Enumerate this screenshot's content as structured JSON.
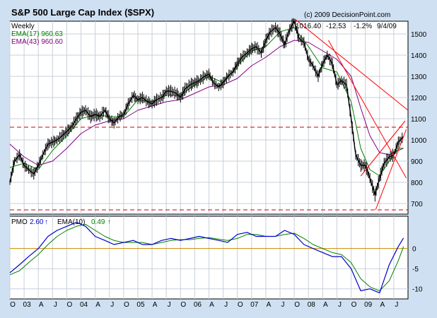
{
  "chart_data": {
    "type": "line",
    "title": "S&P 500 Large Cap Index ($SPX)",
    "copyright": "(c) 2009 DecisionPoint.com",
    "period": "Weekly",
    "quote": {
      "last": "1016.40",
      "change": "-12.53",
      "pct": "-1.2%",
      "date": "9/4/09"
    },
    "legend": [
      {
        "label": "EMA(17) 960.63",
        "color": "#008000"
      },
      {
        "label": "EMA(43) 960.60",
        "color": "#800080"
      }
    ],
    "price_axis": {
      "ticks": [
        "700",
        "800",
        "900",
        "1000",
        "1100",
        "1200",
        "1300",
        "1400",
        "1500"
      ],
      "ylim": [
        650,
        1560
      ]
    },
    "pmo_axis": {
      "ticks": [
        "0",
        "-5",
        "-10"
      ],
      "ylim": [
        -12.5,
        8
      ]
    },
    "x_ticks": [
      "O",
      "03",
      "A",
      "J",
      "O",
      "04",
      "A",
      "J",
      "O",
      "05",
      "A",
      "J",
      "O",
      "06",
      "A",
      "J",
      "O",
      "07",
      "A",
      "J",
      "O",
      "08",
      "A",
      "J",
      "O",
      "09",
      "A",
      "J"
    ],
    "x_range": [
      2002.75,
      2009.75
    ],
    "grid": true,
    "reference_lines": [
      {
        "value": 1060,
        "style": "dashed",
        "color": "#cc0000"
      },
      {
        "value": 670,
        "style": "dashed",
        "color": "#cc0000"
      }
    ],
    "trend_lines": [
      {
        "x": [
          2007.76,
          2009.75
        ],
        "y": [
          1570,
          1140
        ]
      },
      {
        "x": [
          2008.35,
          2009.72
        ],
        "y": [
          1470,
          820
        ]
      },
      {
        "x": [
          2009.18,
          2009.72
        ],
        "y": [
          670,
          1050
        ]
      },
      {
        "x": [
          2008.92,
          2009.7
        ],
        "y": [
          830,
          1090
        ]
      }
    ],
    "price_series": {
      "name": "$SPX",
      "x": [
        2002.75,
        2002.83,
        2002.92,
        2003.0,
        2003.08,
        2003.17,
        2003.25,
        2003.33,
        2003.42,
        2003.5,
        2003.58,
        2003.67,
        2003.75,
        2003.83,
        2003.92,
        2004.0,
        2004.08,
        2004.17,
        2004.25,
        2004.33,
        2004.42,
        2004.5,
        2004.58,
        2004.67,
        2004.75,
        2004.83,
        2004.92,
        2005.0,
        2005.08,
        2005.17,
        2005.25,
        2005.33,
        2005.42,
        2005.5,
        2005.58,
        2005.67,
        2005.75,
        2005.83,
        2005.92,
        2006.0,
        2006.08,
        2006.17,
        2006.25,
        2006.33,
        2006.42,
        2006.5,
        2006.58,
        2006.67,
        2006.75,
        2006.83,
        2006.92,
        2007.0,
        2007.08,
        2007.17,
        2007.25,
        2007.33,
        2007.42,
        2007.5,
        2007.58,
        2007.67,
        2007.75,
        2007.83,
        2007.92,
        2008.0,
        2008.08,
        2008.17,
        2008.25,
        2008.33,
        2008.42,
        2008.5,
        2008.58,
        2008.67,
        2008.75,
        2008.83,
        2008.92,
        2009.0,
        2009.08,
        2009.17,
        2009.25,
        2009.33,
        2009.42,
        2009.5,
        2009.58,
        2009.67
      ],
      "y": [
        800,
        900,
        930,
        880,
        860,
        840,
        880,
        930,
        980,
        990,
        1000,
        1020,
        1040,
        1060,
        1100,
        1130,
        1140,
        1110,
        1120,
        1110,
        1140,
        1100,
        1080,
        1110,
        1120,
        1170,
        1210,
        1190,
        1200,
        1180,
        1170,
        1190,
        1200,
        1230,
        1230,
        1220,
        1200,
        1240,
        1260,
        1270,
        1280,
        1300,
        1310,
        1270,
        1250,
        1270,
        1300,
        1320,
        1360,
        1390,
        1410,
        1430,
        1440,
        1410,
        1470,
        1510,
        1530,
        1500,
        1450,
        1520,
        1560,
        1480,
        1460,
        1380,
        1350,
        1300,
        1360,
        1400,
        1360,
        1260,
        1280,
        1260,
        1100,
        930,
        880,
        880,
        820,
        740,
        820,
        890,
        920,
        930,
        990,
        1016
      ]
    },
    "ema17_series": {
      "name": "EMA(17)",
      "x": [
        2002.75,
        2003.0,
        2003.25,
        2003.5,
        2003.75,
        2004.0,
        2004.25,
        2004.5,
        2004.75,
        2005.0,
        2005.25,
        2005.5,
        2005.75,
        2006.0,
        2006.25,
        2006.5,
        2006.75,
        2007.0,
        2007.25,
        2007.5,
        2007.75,
        2008.0,
        2008.25,
        2008.5,
        2008.75,
        2008.92,
        2009.08,
        2009.25,
        2009.42,
        2009.58,
        2009.67
      ],
      "y": [
        870,
        890,
        860,
        950,
        1020,
        1100,
        1120,
        1110,
        1110,
        1190,
        1180,
        1210,
        1210,
        1260,
        1300,
        1270,
        1350,
        1420,
        1440,
        1510,
        1530,
        1440,
        1340,
        1320,
        1180,
        960,
        860,
        830,
        900,
        960,
        961
      ]
    },
    "ema43_series": {
      "name": "EMA(43)",
      "x": [
        2002.75,
        2003.0,
        2003.25,
        2003.5,
        2003.75,
        2004.0,
        2004.25,
        2004.5,
        2004.75,
        2005.0,
        2005.25,
        2005.5,
        2005.75,
        2006.0,
        2006.25,
        2006.5,
        2006.75,
        2007.0,
        2007.25,
        2007.5,
        2007.75,
        2008.0,
        2008.25,
        2008.5,
        2008.75,
        2008.92,
        2009.08,
        2009.25,
        2009.42,
        2009.58,
        2009.67
      ],
      "y": [
        980,
        920,
        880,
        900,
        960,
        1030,
        1070,
        1090,
        1100,
        1140,
        1160,
        1180,
        1190,
        1220,
        1250,
        1260,
        1290,
        1350,
        1390,
        1440,
        1470,
        1460,
        1420,
        1380,
        1300,
        1150,
        1020,
        940,
        930,
        950,
        961
      ]
    },
    "pmo": {
      "label": "PMO",
      "value": "2.60",
      "ema_label": "EMA(10)",
      "ema_value": "0.49",
      "zero_line_color": "#cc8800",
      "series": {
        "name": "PMO",
        "x": [
          2002.75,
          2002.92,
          2003.08,
          2003.25,
          2003.42,
          2003.58,
          2003.75,
          2003.92,
          2004.08,
          2004.25,
          2004.42,
          2004.58,
          2004.75,
          2004.92,
          2005.08,
          2005.25,
          2005.42,
          2005.58,
          2005.75,
          2005.92,
          2006.08,
          2006.25,
          2006.42,
          2006.58,
          2006.75,
          2006.92,
          2007.08,
          2007.25,
          2007.42,
          2007.58,
          2007.75,
          2007.92,
          2008.08,
          2008.25,
          2008.42,
          2008.58,
          2008.75,
          2008.92,
          2009.08,
          2009.25,
          2009.42,
          2009.58,
          2009.67
        ],
        "y": [
          -6,
          -4,
          -2,
          0,
          3,
          4.5,
          5.5,
          6.5,
          5.5,
          3,
          2,
          1,
          1.5,
          2,
          1,
          1,
          2,
          2.5,
          2,
          2.5,
          3,
          2.5,
          2,
          1.5,
          3.5,
          4,
          3,
          3,
          3,
          4.5,
          3.5,
          1,
          0,
          -1,
          -2,
          -2,
          -5,
          -10.5,
          -10,
          -11,
          -4,
          0.5,
          2.6
        ]
      },
      "ema_series": {
        "name": "EMA(10)",
        "x": [
          2002.75,
          2002.92,
          2003.08,
          2003.25,
          2003.42,
          2003.58,
          2003.75,
          2003.92,
          2004.08,
          2004.25,
          2004.42,
          2004.58,
          2004.75,
          2004.92,
          2005.08,
          2005.25,
          2005.42,
          2005.58,
          2005.75,
          2005.92,
          2006.08,
          2006.25,
          2006.42,
          2006.58,
          2006.75,
          2006.92,
          2007.08,
          2007.25,
          2007.42,
          2007.58,
          2007.75,
          2007.92,
          2008.08,
          2008.25,
          2008.42,
          2008.58,
          2008.75,
          2008.92,
          2009.08,
          2009.25,
          2009.42,
          2009.58,
          2009.67
        ],
        "y": [
          -6.5,
          -5.5,
          -3.5,
          -1.5,
          1,
          3,
          4.5,
          5.5,
          6,
          4.5,
          3,
          2,
          1.5,
          1.5,
          1.5,
          1,
          1.5,
          2,
          2.2,
          2.2,
          2.5,
          2.7,
          2.3,
          2,
          2.5,
          3.5,
          3.5,
          3,
          3,
          3.5,
          3.8,
          2.5,
          1,
          0,
          -1,
          -1.5,
          -3.5,
          -7.5,
          -9.5,
          -10.5,
          -8,
          -3,
          0.49
        ]
      }
    }
  }
}
